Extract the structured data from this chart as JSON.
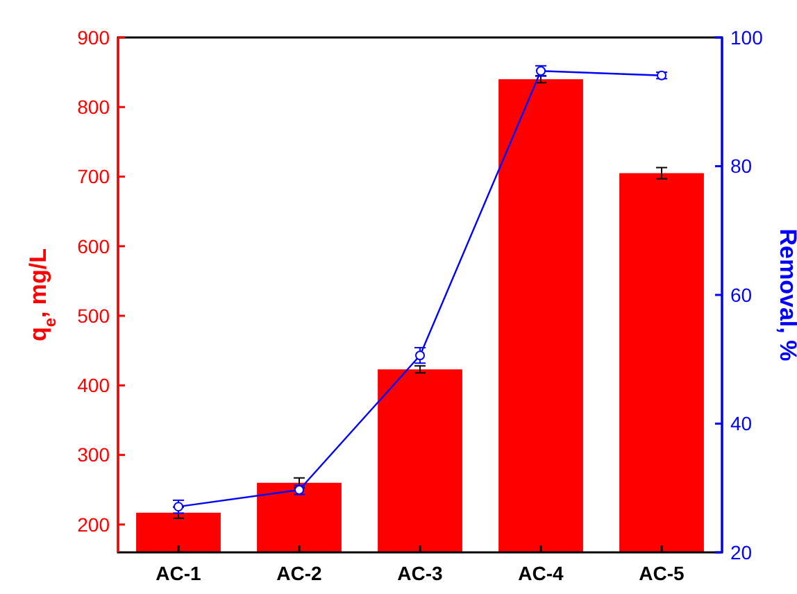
{
  "chart_data": {
    "type": "bar",
    "categories": [
      "AC-1",
      "AC-2",
      "AC-3",
      "AC-4",
      "AC-5"
    ],
    "ylabel": "q$_{e}$, mg/L",
    "y2label": "Removal, %",
    "ylim": [
      160,
      900
    ],
    "yticks": [
      200,
      300,
      400,
      500,
      600,
      700,
      800,
      900
    ],
    "y2lim": [
      20,
      100
    ],
    "y2ticks": [
      20,
      40,
      60,
      80,
      100
    ],
    "marker": "circle",
    "grid": false,
    "series": [
      {
        "color": "#ff0000",
        "values": [
          217,
          260,
          423,
          840,
          705
        ],
        "errors": [
          8,
          7,
          5,
          5,
          8
        ]
      },
      {
        "type": "line",
        "axis": "y2",
        "color": "#0000ff",
        "values": [
          27.1,
          29.7,
          50.6,
          94.8,
          94.1
        ],
        "errors": [
          1,
          0.7,
          1.2,
          0.8,
          0.5
        ]
      }
    ]
  }
}
